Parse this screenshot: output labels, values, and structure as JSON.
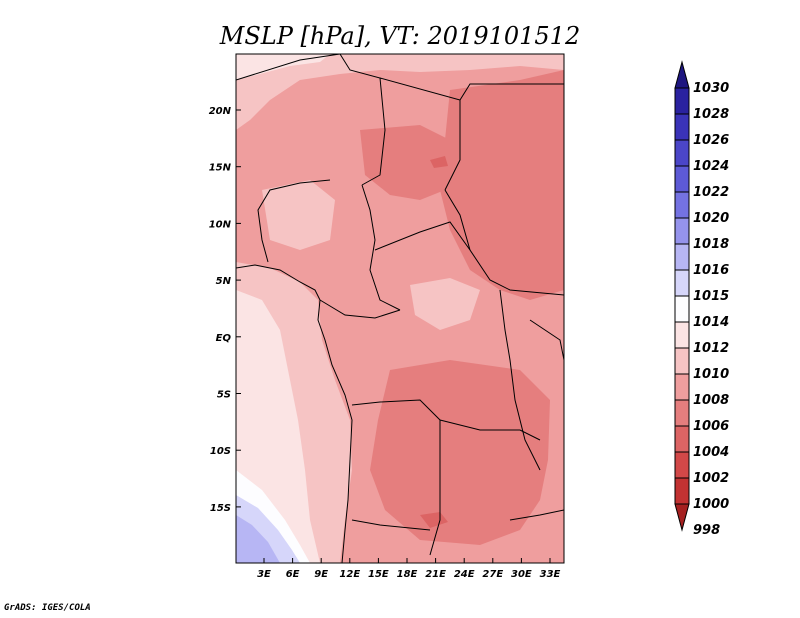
{
  "title": "MSLP [hPa], VT: 2019101512",
  "credit": "GrADS: IGES/COLA",
  "map": {
    "lon_ticks": [
      "3E",
      "6E",
      "9E",
      "12E",
      "15E",
      "18E",
      "21E",
      "24E",
      "27E",
      "30E",
      "33E"
    ],
    "lat_ticks": [
      "20N",
      "15N",
      "10N",
      "5N",
      "EQ",
      "5S",
      "10S",
      "15S"
    ]
  },
  "colorbar": {
    "levels": [
      {
        "label": "1030",
        "color": "#1e1680"
      },
      {
        "label": "1028",
        "color": "#2a22a0"
      },
      {
        "label": "1026",
        "color": "#3a33b8"
      },
      {
        "label": "1024",
        "color": "#4b46c8"
      },
      {
        "label": "1022",
        "color": "#5d5ad6"
      },
      {
        "label": "1020",
        "color": "#7472e2"
      },
      {
        "label": "1018",
        "color": "#9593ec"
      },
      {
        "label": "1016",
        "color": "#b7b6f4"
      },
      {
        "label": "1015",
        "color": "#d6d6fa"
      },
      {
        "label": "1014",
        "color": "#fdfdff"
      },
      {
        "label": "1012",
        "color": "#fbe4e4"
      },
      {
        "label": "1010",
        "color": "#f6c4c4"
      },
      {
        "label": "1008",
        "color": "#ef9e9e"
      },
      {
        "label": "1006",
        "color": "#e57e7e"
      },
      {
        "label": "1004",
        "color": "#dc6464"
      },
      {
        "label": "1002",
        "color": "#d24848"
      },
      {
        "label": "1000",
        "color": "#c23232"
      },
      {
        "label": "998",
        "color": "#a52020"
      }
    ]
  }
}
